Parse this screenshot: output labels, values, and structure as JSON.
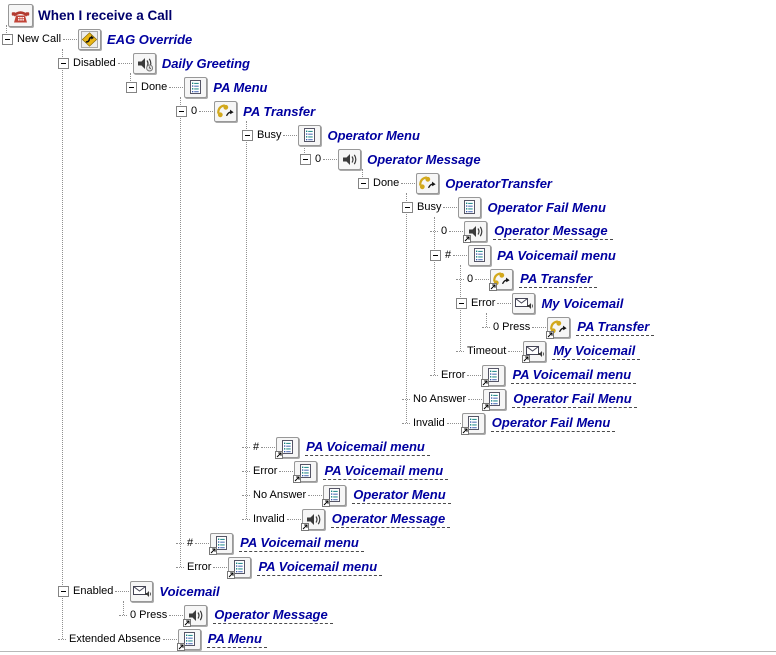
{
  "window": {
    "background": "#ffffff"
  },
  "colors": {
    "node_text": "#0000A0",
    "root_text": "#00006B",
    "branch_text": "#000000",
    "connector_line": "#909090",
    "link_underline": "#4a4a4a",
    "transfer_gold": "#D2A81C",
    "mode_gold": "#E8B517",
    "menu_teal": "#007878",
    "phone_red": "#B23B30"
  },
  "rows": [
    {
      "row": 1,
      "parent": 0,
      "branch": "",
      "name": "When I receive a Call",
      "icon": "phone",
      "link": false
    },
    {
      "row": 2,
      "parent": 1,
      "branch": "New Call",
      "name": "EAG Override",
      "icon": "mode",
      "link": false
    },
    {
      "row": 3,
      "parent": 2,
      "branch": "Disabled",
      "name": "Daily Greeting",
      "icon": "prompt-daily",
      "link": false
    },
    {
      "row": 4,
      "parent": 3,
      "branch": "Done",
      "name": "PA Menu",
      "icon": "menu",
      "link": false
    },
    {
      "row": 5,
      "parent": 4,
      "branch": "0",
      "name": "PA Transfer",
      "icon": "transfer",
      "link": false
    },
    {
      "row": 6,
      "parent": 5,
      "branch": "Busy",
      "name": "Operator Menu",
      "icon": "menu",
      "link": false
    },
    {
      "row": 7,
      "parent": 6,
      "branch": "0",
      "name": "Operator Message",
      "icon": "prompt",
      "link": false
    },
    {
      "row": 8,
      "parent": 7,
      "branch": "Done",
      "name": "OperatorTransfer",
      "icon": "transfer",
      "link": false
    },
    {
      "row": 9,
      "parent": 8,
      "branch": "Busy",
      "name": "Operator Fail Menu",
      "icon": "menu",
      "link": false
    },
    {
      "row": 10,
      "parent": 9,
      "branch": "0",
      "name": "Operator Message",
      "icon": "prompt",
      "link": true
    },
    {
      "row": 11,
      "parent": 9,
      "branch": "#",
      "name": "PA Voicemail menu",
      "icon": "menu",
      "link": false
    },
    {
      "row": 12,
      "parent": 11,
      "branch": "0",
      "name": "PA Transfer",
      "icon": "transfer",
      "link": true
    },
    {
      "row": 13,
      "parent": 11,
      "branch": "Error",
      "name": "My Voicemail",
      "icon": "voicemail",
      "link": false
    },
    {
      "row": 14,
      "parent": 13,
      "branch": "0 Press",
      "name": "PA Transfer",
      "icon": "transfer",
      "link": true
    },
    {
      "row": 15,
      "parent": 11,
      "branch": "Timeout",
      "name": "My Voicemail",
      "icon": "voicemail",
      "link": true
    },
    {
      "row": 16,
      "parent": 9,
      "branch": "Error",
      "name": "PA Voicemail menu",
      "icon": "menu",
      "link": true
    },
    {
      "row": 17,
      "parent": 8,
      "branch": "No Answer",
      "name": "Operator Fail Menu",
      "icon": "menu",
      "link": true
    },
    {
      "row": 18,
      "parent": 8,
      "branch": "Invalid",
      "name": "Operator Fail Menu",
      "icon": "menu",
      "link": true
    },
    {
      "row": 19,
      "parent": 5,
      "branch": "#",
      "name": "PA Voicemail menu",
      "icon": "menu",
      "link": true
    },
    {
      "row": 20,
      "parent": 5,
      "branch": "Error",
      "name": "PA Voicemail menu",
      "icon": "menu",
      "link": true
    },
    {
      "row": 21,
      "parent": 5,
      "branch": "No Answer",
      "name": "Operator Menu",
      "icon": "menu",
      "link": true
    },
    {
      "row": 22,
      "parent": 5,
      "branch": "Invalid",
      "name": "Operator Message",
      "icon": "prompt",
      "link": true
    },
    {
      "row": 23,
      "parent": 4,
      "branch": "#",
      "name": "PA Voicemail menu",
      "icon": "menu",
      "link": true
    },
    {
      "row": 24,
      "parent": 4,
      "branch": "Error",
      "name": "PA Voicemail menu",
      "icon": "menu",
      "link": true
    },
    {
      "row": 25,
      "parent": 2,
      "branch": "Enabled",
      "name": "Voicemail",
      "icon": "voicemail",
      "link": false
    },
    {
      "row": 26,
      "parent": 25,
      "branch": "0 Press",
      "name": "Operator Message",
      "icon": "prompt",
      "link": true
    },
    {
      "row": 27,
      "parent": 2,
      "branch": "Extended Absence",
      "name": "PA Menu",
      "icon": "menu",
      "link": true
    }
  ]
}
